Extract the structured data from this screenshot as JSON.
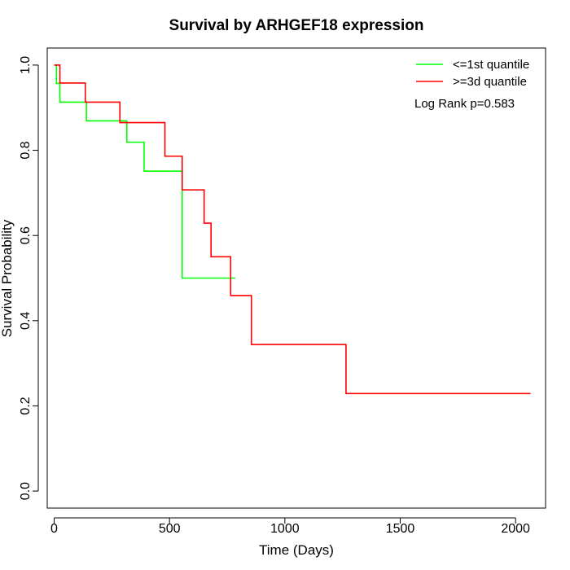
{
  "chart_data": {
    "type": "line",
    "title": "Survival by ARHGEF18 expression",
    "xlabel": "Time (Days)",
    "ylabel": "Survival Probability",
    "xlim": [
      -30,
      2130
    ],
    "ylim": [
      -0.04,
      1.04
    ],
    "x_ticks": [
      0,
      500,
      1000,
      1500,
      2000
    ],
    "x_tick_labels": [
      "0",
      "500",
      "1000",
      "1500",
      "2000"
    ],
    "y_ticks": [
      0.0,
      0.2,
      0.4,
      0.6,
      0.8,
      1.0
    ],
    "y_tick_labels": [
      "0.0",
      "0.2",
      "0.4",
      "0.6",
      "0.8",
      "1.0"
    ],
    "grid": false,
    "legend_position": "top-right",
    "annotation": "Log Rank p=0.583",
    "series": [
      {
        "name": "<=1st quantile",
        "color": "#00ff00",
        "x": [
          0,
          10,
          25,
          140,
          315,
          390,
          555,
          785
        ],
        "y": [
          1.0,
          0.957,
          0.913,
          0.869,
          0.819,
          0.751,
          0.5,
          0.5
        ]
      },
      {
        "name": ">=3d quantile",
        "color": "#ff0000",
        "x": [
          0,
          25,
          135,
          285,
          480,
          555,
          650,
          680,
          765,
          855,
          1265,
          2065
        ],
        "y": [
          1.0,
          0.958,
          0.913,
          0.865,
          0.786,
          0.707,
          0.629,
          0.55,
          0.459,
          0.344,
          0.229,
          0.229
        ]
      }
    ]
  }
}
